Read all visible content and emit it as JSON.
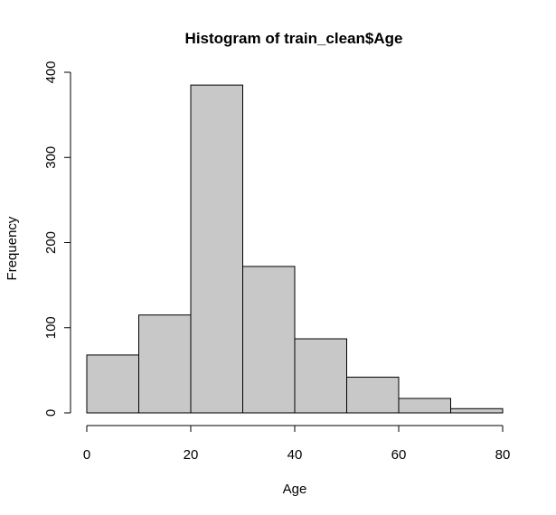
{
  "chart_data": {
    "type": "bar",
    "title": "Histogram of train_clean$Age",
    "xlabel": "Age",
    "ylabel": "Frequency",
    "bins": [
      {
        "from": 0,
        "to": 10,
        "count": 68
      },
      {
        "from": 10,
        "to": 20,
        "count": 115
      },
      {
        "from": 20,
        "to": 30,
        "count": 385
      },
      {
        "from": 30,
        "to": 40,
        "count": 172
      },
      {
        "from": 40,
        "to": 50,
        "count": 87
      },
      {
        "from": 50,
        "to": 60,
        "count": 42
      },
      {
        "from": 60,
        "to": 70,
        "count": 17
      },
      {
        "from": 70,
        "to": 80,
        "count": 5
      }
    ],
    "xticks": [
      0,
      20,
      40,
      60,
      80
    ],
    "yticks": [
      0,
      100,
      200,
      300,
      400
    ],
    "xlim": [
      0,
      80
    ],
    "ylim": [
      0,
      400
    ],
    "grid": false,
    "bar_fill": "#c8c8c8",
    "bar_stroke": "#000000"
  }
}
